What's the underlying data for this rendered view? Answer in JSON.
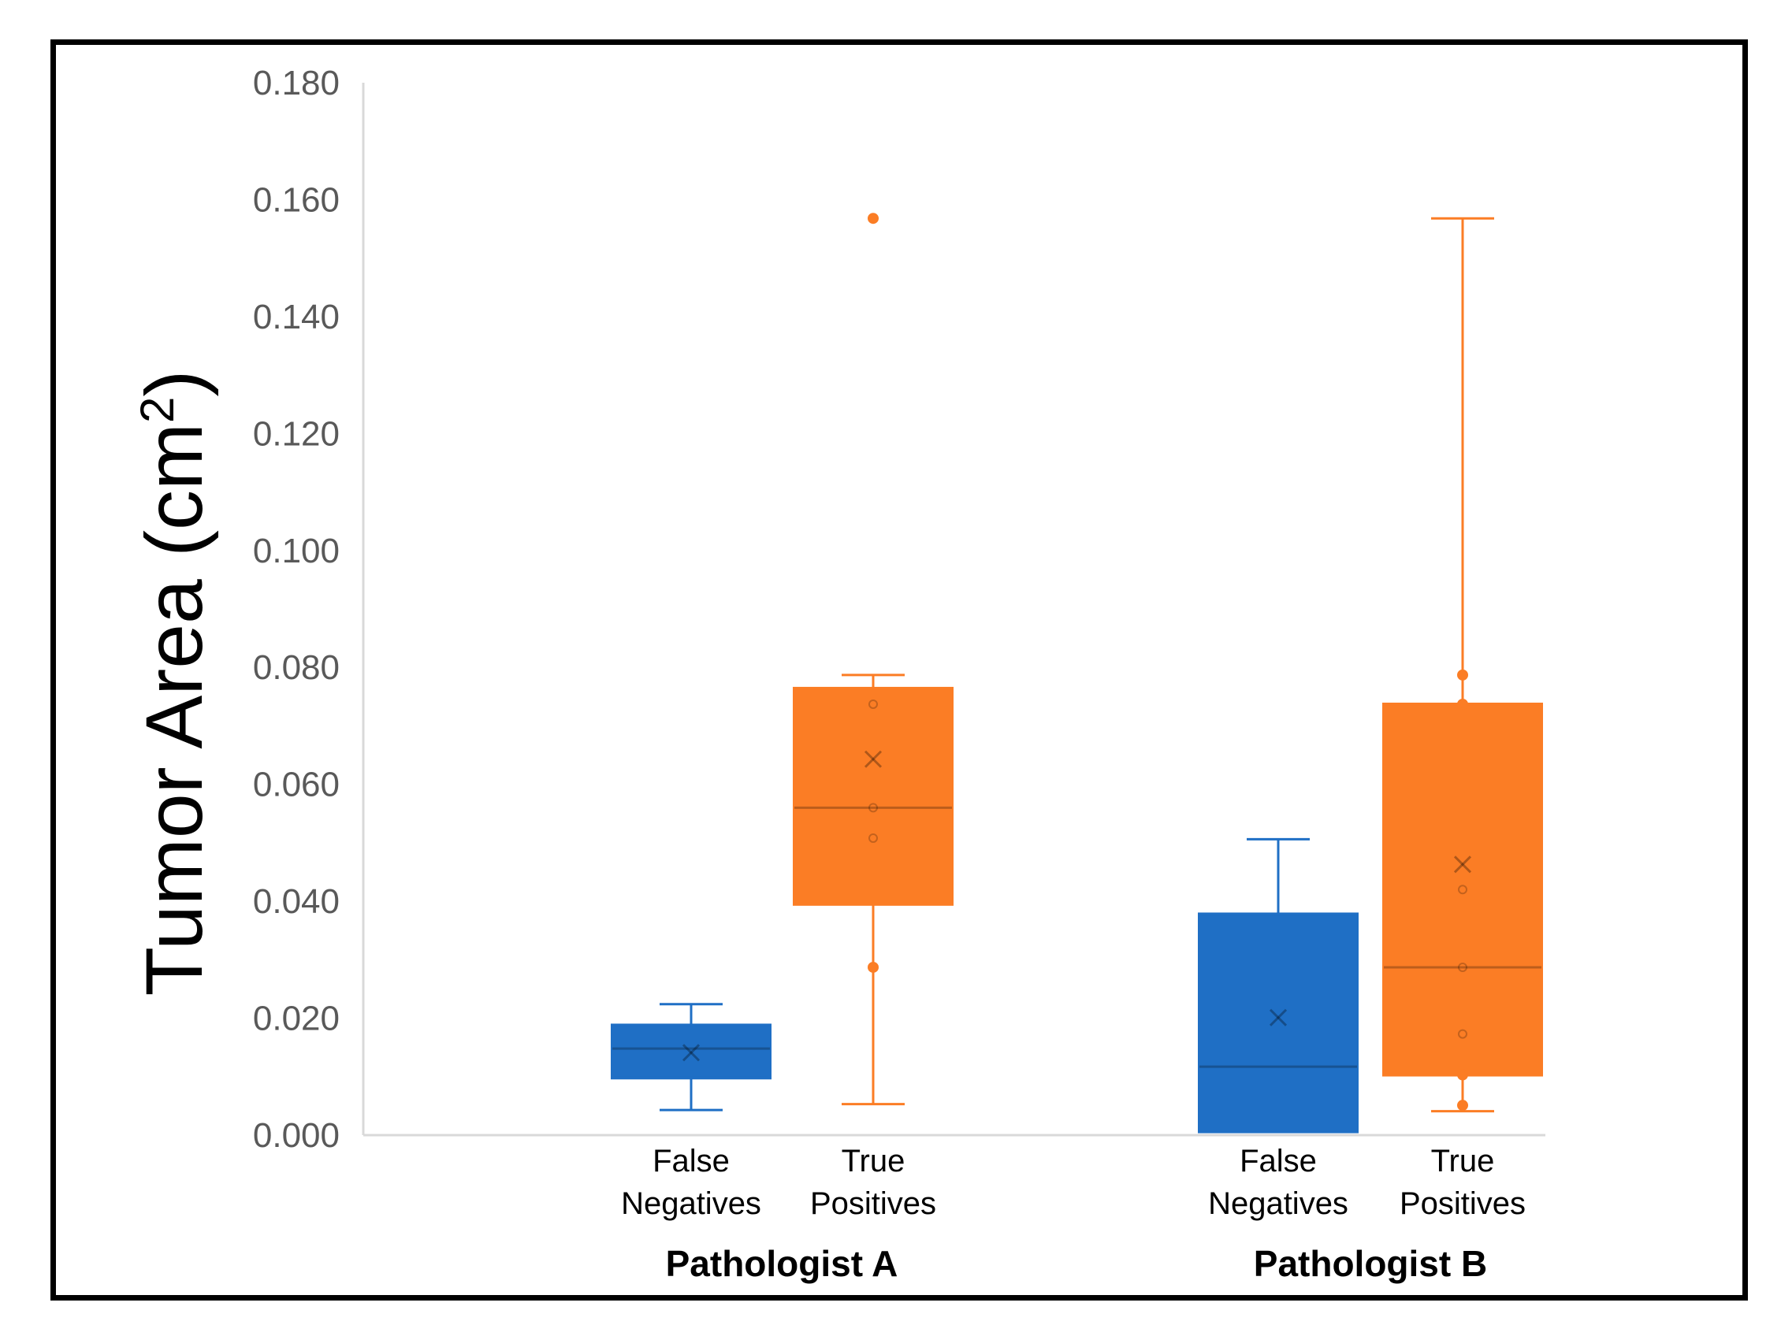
{
  "chart_data": {
    "type": "box",
    "ylabel": "Tumor Area (cm",
    "ylabel_sup": "2",
    "ylabel_close": ")",
    "ylim": [
      0,
      0.18
    ],
    "yticks": [
      "0.000",
      "0.020",
      "0.040",
      "0.060",
      "0.080",
      "0.100",
      "0.120",
      "0.140",
      "0.160",
      "0.180"
    ],
    "colors": {
      "false_negatives": "#1f6fc5",
      "true_positives": "#fb7d25",
      "axis": "#d9d9d9"
    },
    "groups": [
      {
        "name": "Pathologist A",
        "boxes": [
          {
            "label_line1": "False",
            "label_line2": "Negatives",
            "series": "false_negatives",
            "min": 0.0043,
            "q1": 0.0098,
            "median": 0.0148,
            "q3": 0.0188,
            "max": 0.0224,
            "mean": 0.0141,
            "points": [],
            "outliers": []
          },
          {
            "label_line1": "True",
            "label_line2": "Positives",
            "series": "true_positives",
            "min": 0.0053,
            "q1": 0.0395,
            "median": 0.056,
            "q3": 0.0764,
            "max": 0.0787,
            "mean": 0.0643,
            "points": [
              0.0287,
              0.0508,
              0.056,
              0.0737
            ],
            "outliers": [
              0.1568
            ]
          }
        ]
      },
      {
        "name": "Pathologist B",
        "boxes": [
          {
            "label_line1": "False",
            "label_line2": "Negatives",
            "series": "false_negatives",
            "min": 0.0006,
            "q1": 0.0006,
            "median": 0.0117,
            "q3": 0.0378,
            "max": 0.0506,
            "mean": 0.0201,
            "points": [],
            "outliers": []
          },
          {
            "label_line1": "True",
            "label_line2": "Positives",
            "series": "true_positives",
            "min": 0.0041,
            "q1": 0.0103,
            "median": 0.0287,
            "q3": 0.0737,
            "max": 0.1568,
            "mean": 0.0463,
            "points": [
              0.0051,
              0.0103,
              0.0173,
              0.0287,
              0.042,
              0.0737,
              0.0787
            ],
            "outliers": []
          }
        ]
      }
    ]
  }
}
